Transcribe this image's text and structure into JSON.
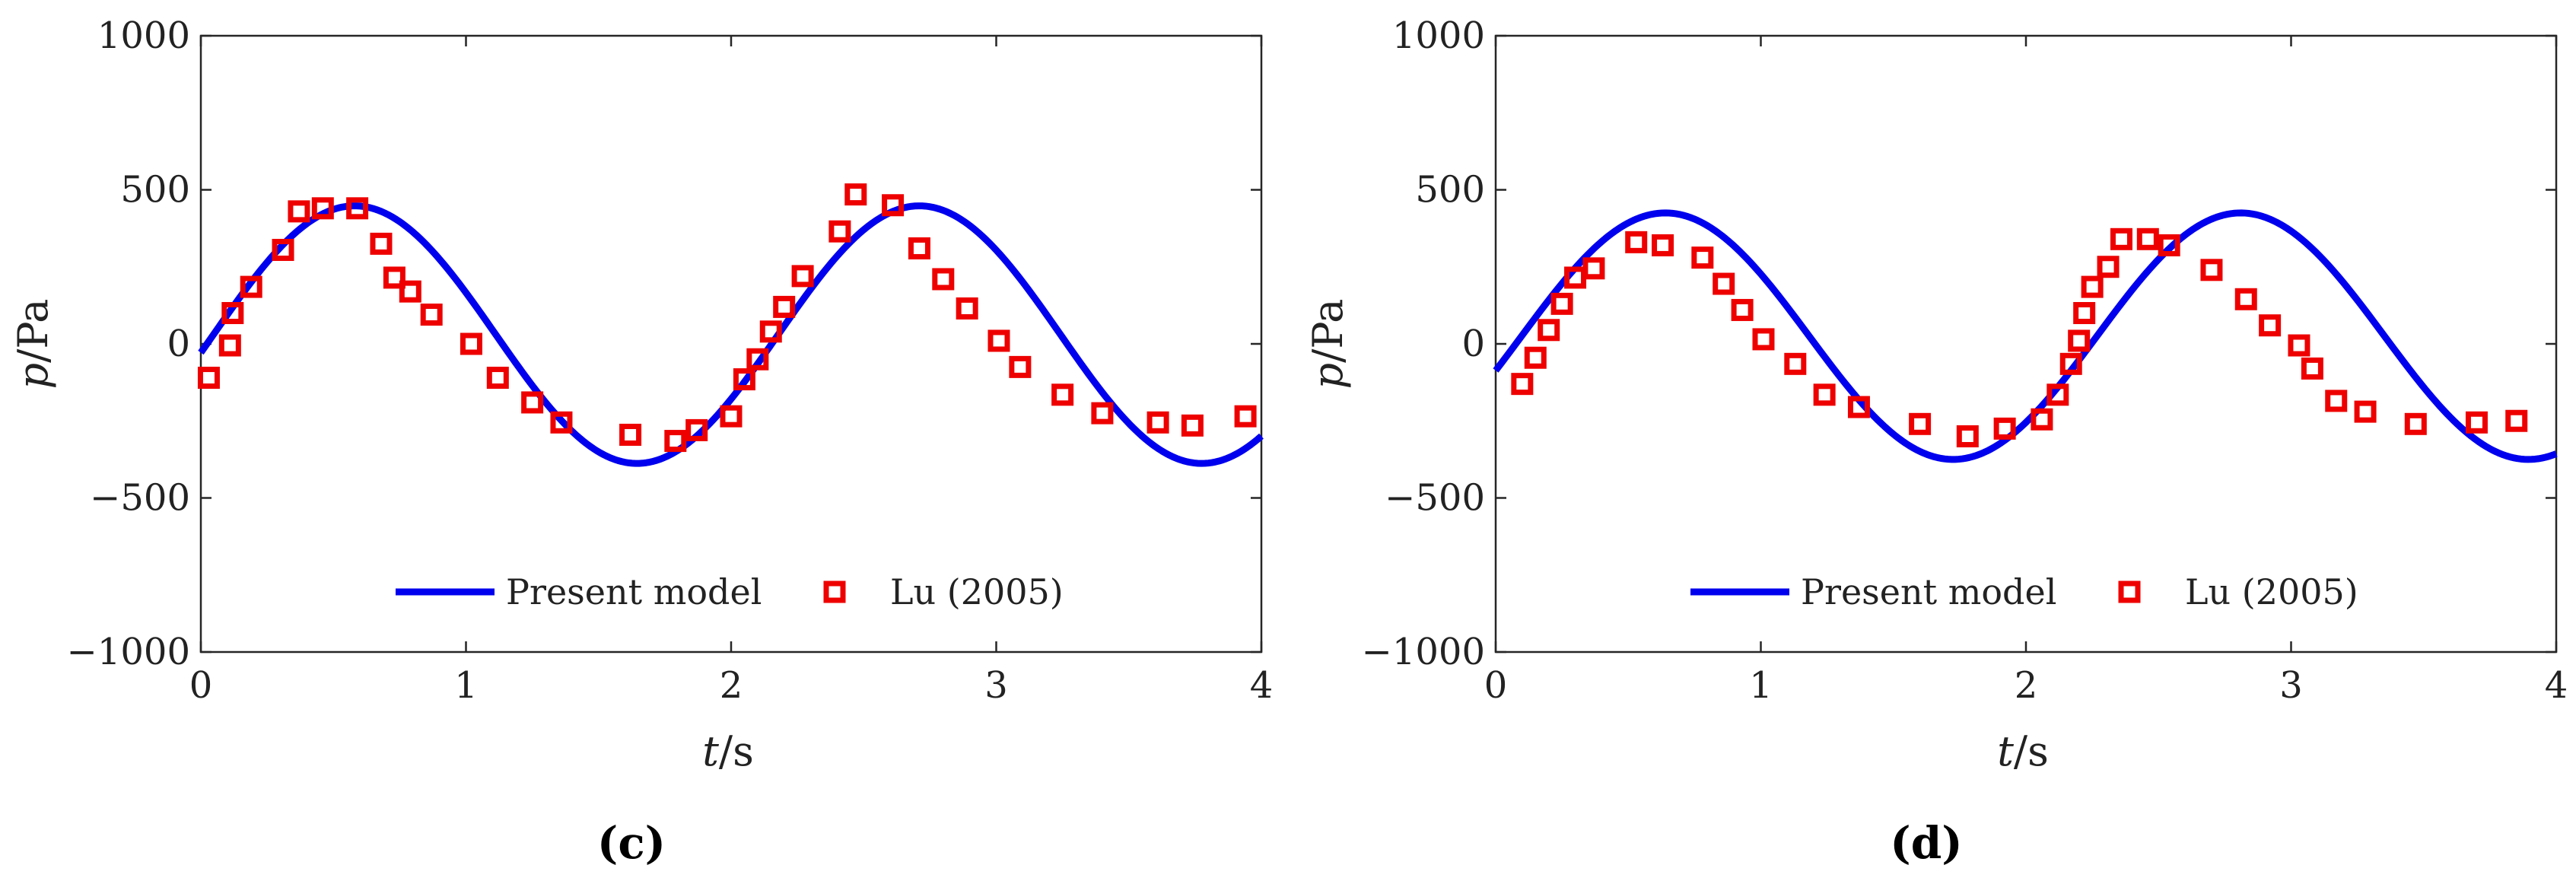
{
  "chart_data": [
    {
      "type": "line",
      "panel_label": "(c)",
      "xlabel": "t/s",
      "ylabel": "p/Pa",
      "xlim": [
        0,
        4
      ],
      "ylim": [
        -1000,
        1000
      ],
      "xticks": [
        0,
        1,
        2,
        3,
        4
      ],
      "xtick_labels": [
        "0",
        "1",
        "2",
        "3",
        "4"
      ],
      "yticks": [
        -1000,
        -500,
        0,
        500,
        1000
      ],
      "ytick_labels": [
        "−1000",
        "−500",
        "0",
        "500",
        "1000"
      ],
      "grid": false,
      "legend_position": "bottom-center",
      "series": [
        {
          "name": "Present model",
          "style": "line",
          "color": "#0000ee",
          "model": {
            "mean": 30,
            "amplitude": 418,
            "period": 2.13,
            "peak_t": 0.58
          }
        },
        {
          "name": "Lu (2005)",
          "style": "square-marker",
          "color": "#ee0000",
          "x": [
            0.03,
            0.11,
            0.12,
            0.19,
            0.31,
            0.37,
            0.46,
            0.59,
            0.68,
            0.73,
            0.79,
            0.87,
            1.02,
            1.12,
            1.25,
            1.36,
            1.62,
            1.79,
            1.87,
            2.0,
            2.05,
            2.1,
            2.15,
            2.2,
            2.27,
            2.41,
            2.47,
            2.61,
            2.71,
            2.8,
            2.89,
            3.01,
            3.09,
            3.25,
            3.4,
            3.61,
            3.74,
            3.94
          ],
          "y": [
            -110,
            -5,
            100,
            185,
            305,
            430,
            440,
            440,
            325,
            215,
            170,
            95,
            0,
            -110,
            -190,
            -255,
            -295,
            -315,
            -280,
            -235,
            -115,
            -50,
            40,
            120,
            220,
            365,
            485,
            450,
            310,
            210,
            115,
            10,
            -75,
            -165,
            -225,
            -255,
            -265,
            -235
          ]
        }
      ]
    },
    {
      "type": "line",
      "panel_label": "(d)",
      "xlabel": "t/s",
      "ylabel": "p/Pa",
      "xlim": [
        0,
        4
      ],
      "ylim": [
        -1000,
        1000
      ],
      "xticks": [
        0,
        1,
        2,
        3,
        4
      ],
      "xtick_labels": [
        "0",
        "1",
        "2",
        "3",
        "4"
      ],
      "yticks": [
        -1000,
        -500,
        0,
        500,
        1000
      ],
      "ytick_labels": [
        "−1000",
        "−500",
        "0",
        "500",
        "1000"
      ],
      "grid": false,
      "legend_position": "bottom-center",
      "series": [
        {
          "name": "Present model",
          "style": "line",
          "color": "#0000ee",
          "model": {
            "mean": 25,
            "amplitude": 400,
            "period": 2.17,
            "peak_t": 0.64
          }
        },
        {
          "name": "Lu (2005)",
          "style": "square-marker",
          "color": "#ee0000",
          "x": [
            0.1,
            0.15,
            0.2,
            0.25,
            0.3,
            0.37,
            0.53,
            0.63,
            0.78,
            0.86,
            0.93,
            1.01,
            1.13,
            1.24,
            1.37,
            1.6,
            1.78,
            1.92,
            2.06,
            2.12,
            2.17,
            2.2,
            2.22,
            2.25,
            2.31,
            2.36,
            2.46,
            2.54,
            2.7,
            2.83,
            2.92,
            3.03,
            3.08,
            3.17,
            3.28,
            3.47,
            3.7,
            3.85
          ],
          "y": [
            -130,
            -45,
            45,
            130,
            215,
            245,
            330,
            320,
            280,
            195,
            110,
            15,
            -65,
            -165,
            -205,
            -260,
            -300,
            -275,
            -245,
            -165,
            -65,
            10,
            100,
            185,
            250,
            340,
            340,
            320,
            240,
            145,
            60,
            -5,
            -80,
            -185,
            -220,
            -260,
            -255,
            -250
          ]
        }
      ]
    }
  ]
}
